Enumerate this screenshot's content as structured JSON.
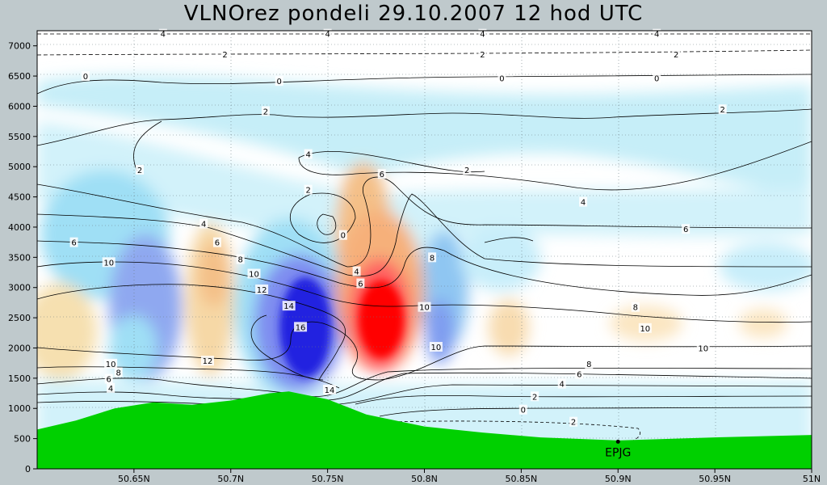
{
  "chart_data": {
    "type": "heatmap",
    "title": "VLNOrez pondeli 29.10.2007 12 hod UTC",
    "xlabel": "",
    "ylabel": "",
    "x_ticks": [
      "50.65N",
      "50.7N",
      "50.75N",
      "50.8N",
      "50.85N",
      "50.9N",
      "50.95N",
      "51N"
    ],
    "x_tick_values": [
      50.65,
      50.7,
      50.75,
      50.8,
      50.85,
      50.9,
      50.95,
      51.0
    ],
    "xlim": [
      50.6,
      51.0
    ],
    "y_ticks": [
      "0",
      "500",
      "1000",
      "1500",
      "2000",
      "2500",
      "3000",
      "3500",
      "4000",
      "4500",
      "5000",
      "5500",
      "6000",
      "6500",
      "7000"
    ],
    "y_tick_values": [
      0,
      500,
      1000,
      1500,
      2000,
      2500,
      3000,
      3500,
      4000,
      4500,
      5000,
      5500,
      6000,
      6500,
      7000
    ],
    "ylim": [
      0,
      7250
    ],
    "grid": "dotted",
    "station_label": "EPJG",
    "station_lat": 50.9,
    "station_height": 450,
    "terrain": {
      "x": [
        50.6,
        50.62,
        50.64,
        50.66,
        50.68,
        50.7,
        50.72,
        50.73,
        50.75,
        50.77,
        50.8,
        50.83,
        50.86,
        50.9,
        50.95,
        51.0
      ],
      "height": [
        650,
        800,
        1000,
        1100,
        1060,
        1130,
        1250,
        1280,
        1150,
        900,
        700,
        600,
        520,
        470,
        520,
        560
      ]
    },
    "contour_labels": [
      {
        "text": "4",
        "x": 50.665,
        "y": 7200
      },
      {
        "text": "4",
        "x": 50.75,
        "y": 7200
      },
      {
        "text": "4",
        "x": 50.83,
        "y": 7200
      },
      {
        "text": "4",
        "x": 50.92,
        "y": 7200
      },
      {
        "text": "2",
        "x": 50.697,
        "y": 6860
      },
      {
        "text": "2",
        "x": 50.83,
        "y": 6860
      },
      {
        "text": "2",
        "x": 50.93,
        "y": 6860
      },
      {
        "text": "0",
        "x": 50.625,
        "y": 6500
      },
      {
        "text": "0",
        "x": 50.725,
        "y": 6420
      },
      {
        "text": "0",
        "x": 50.84,
        "y": 6470
      },
      {
        "text": "0",
        "x": 50.92,
        "y": 6470
      },
      {
        "text": "2",
        "x": 50.718,
        "y": 5920
      },
      {
        "text": "2",
        "x": 50.954,
        "y": 5950
      },
      {
        "text": "2",
        "x": 50.653,
        "y": 4950
      },
      {
        "text": "2",
        "x": 50.822,
        "y": 4950
      },
      {
        "text": "4",
        "x": 50.74,
        "y": 5210
      },
      {
        "text": "2",
        "x": 50.74,
        "y": 4620
      },
      {
        "text": "0",
        "x": 50.758,
        "y": 3870
      },
      {
        "text": "6",
        "x": 50.778,
        "y": 4880
      },
      {
        "text": "4",
        "x": 50.882,
        "y": 4420
      },
      {
        "text": "6",
        "x": 50.935,
        "y": 3970
      },
      {
        "text": "4",
        "x": 50.686,
        "y": 4060
      },
      {
        "text": "6",
        "x": 50.619,
        "y": 3750
      },
      {
        "text": "6",
        "x": 50.693,
        "y": 3750
      },
      {
        "text": "8",
        "x": 50.705,
        "y": 3470
      },
      {
        "text": "10",
        "x": 50.637,
        "y": 3420
      },
      {
        "text": "10",
        "x": 50.712,
        "y": 3230
      },
      {
        "text": "12",
        "x": 50.716,
        "y": 2970
      },
      {
        "text": "14",
        "x": 50.73,
        "y": 2700
      },
      {
        "text": "16",
        "x": 50.736,
        "y": 2350
      },
      {
        "text": "14",
        "x": 50.751,
        "y": 1310
      },
      {
        "text": "4",
        "x": 50.765,
        "y": 3270
      },
      {
        "text": "6",
        "x": 50.767,
        "y": 3070
      },
      {
        "text": "8",
        "x": 50.804,
        "y": 3500
      },
      {
        "text": "10",
        "x": 50.8,
        "y": 2680
      },
      {
        "text": "10",
        "x": 50.806,
        "y": 2020
      },
      {
        "text": "8",
        "x": 50.909,
        "y": 2680
      },
      {
        "text": "10",
        "x": 50.914,
        "y": 2330
      },
      {
        "text": "10",
        "x": 50.944,
        "y": 2000
      },
      {
        "text": "8",
        "x": 50.885,
        "y": 1740
      },
      {
        "text": "6",
        "x": 50.88,
        "y": 1570
      },
      {
        "text": "4",
        "x": 50.871,
        "y": 1410
      },
      {
        "text": "2",
        "x": 50.857,
        "y": 1200
      },
      {
        "text": "0",
        "x": 50.851,
        "y": 980
      },
      {
        "text": "2",
        "x": 50.877,
        "y": 780
      },
      {
        "text": "10",
        "x": 50.638,
        "y": 1740
      },
      {
        "text": "8",
        "x": 50.642,
        "y": 1600
      },
      {
        "text": "6",
        "x": 50.637,
        "y": 1490
      },
      {
        "text": "4",
        "x": 50.638,
        "y": 1340
      },
      {
        "text": "12",
        "x": 50.688,
        "y": 1790
      }
    ],
    "colors": {
      "background": "#bfc9cc",
      "terrain": "#00d000",
      "strong_updraft": "#ff0000",
      "strong_downdraft": "#2020e0",
      "light_blue": "#d8f4fb"
    }
  }
}
